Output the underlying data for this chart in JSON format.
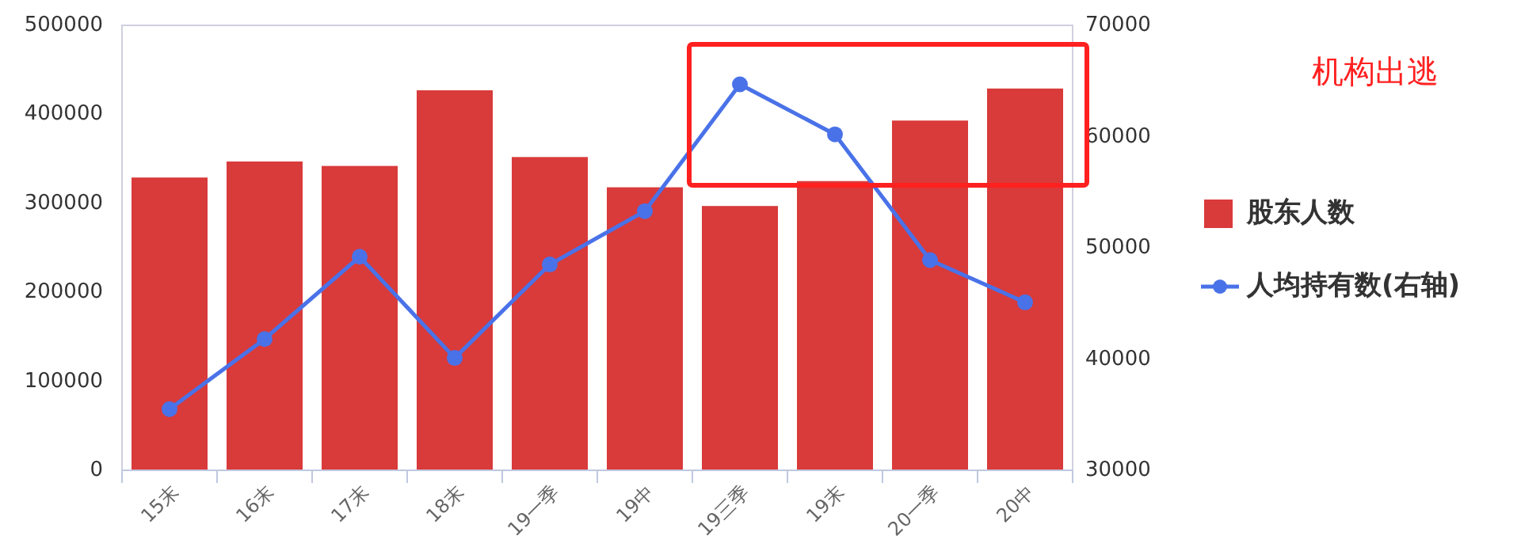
{
  "chart_data": {
    "type": "bar",
    "categories": [
      "15末",
      "16末",
      "17末",
      "18末",
      "19一季",
      "19中",
      "19三季",
      "19末",
      "20一季",
      "20中"
    ],
    "series": [
      {
        "name": "股东人数",
        "color": "#d93a3a",
        "values": [
          329000,
          347000,
          342000,
          427000,
          352000,
          318000,
          297000,
          325000,
          393000,
          429000
        ]
      },
      {
        "name": "人均持有数(右轴)",
        "type": "line",
        "axis": "y2",
        "color": "#4a72e8",
        "marker": "circle",
        "values": [
          35500,
          41800,
          49200,
          40100,
          48500,
          53300,
          64700,
          60200,
          48900,
          45100
        ]
      }
    ],
    "ylim": [
      0,
      500000
    ],
    "yticks": [
      0,
      100000,
      200000,
      300000,
      400000,
      500000
    ],
    "y2lim": [
      30000,
      70000
    ],
    "y2ticks": [
      30000,
      40000,
      50000,
      60000,
      70000
    ],
    "legend": "right",
    "annotations": [
      "机构出逃"
    ]
  }
}
